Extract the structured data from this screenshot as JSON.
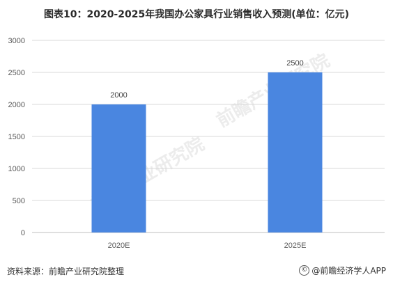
{
  "chart_data": {
    "type": "bar",
    "title": "图表10：2020-2025年我国办公家具行业销售收入预测(单位：亿元)",
    "categories": [
      "2020E",
      "2025E"
    ],
    "values": [
      2000,
      2500
    ],
    "data_labels": [
      "2000",
      "2500"
    ],
    "ylim": [
      0,
      3000
    ],
    "yticks": [
      "0",
      "500",
      "1000",
      "1500",
      "2000",
      "2500",
      "3000"
    ],
    "grid": true,
    "bar_color": "#4a86e0",
    "legend": "none"
  },
  "footer": {
    "source": "资料来源：前瞻产业研究院整理",
    "brand": "@前瞻经济学人APP"
  },
  "watermark": {
    "text": "前瞻产业研究院"
  }
}
